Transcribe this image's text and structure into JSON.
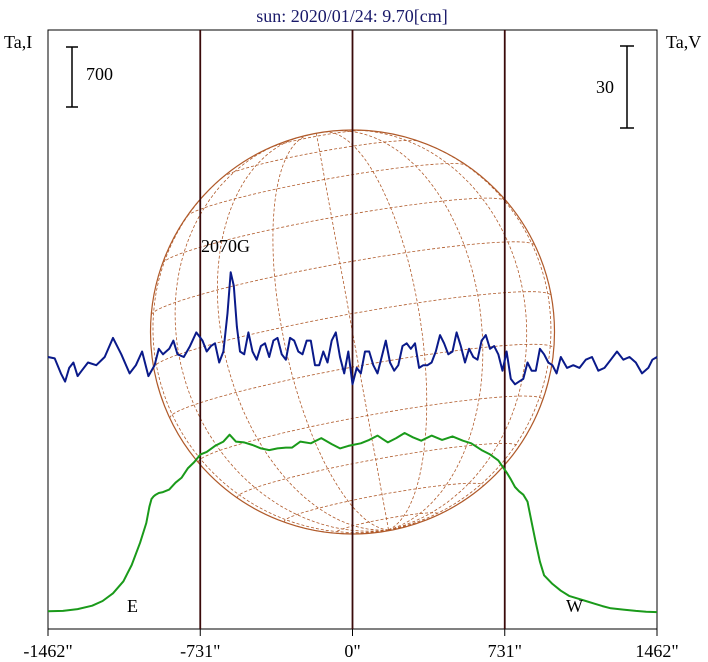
{
  "chart_data": {
    "type": "line",
    "title": "sun: 2020/01/24: 9.70[cm]",
    "left_axis_label": "Ta,I",
    "right_axis_label": "Ta,V",
    "scale_bars": {
      "left_value": "700",
      "right_value": "30"
    },
    "x_tick_labels": [
      "-1462\"",
      "-731\"",
      "0\"",
      "731\"",
      "1462\""
    ],
    "x_ticks": [
      -1462,
      -731,
      0,
      731,
      1462
    ],
    "xlim": [
      -1462,
      1462
    ],
    "limb_labels": {
      "east": "E",
      "west": "W"
    },
    "limb_positions": [
      -731,
      0,
      731
    ],
    "annotation": {
      "text": "2070G",
      "x": -590
    },
    "colors": {
      "intensity": "#1a9a1a",
      "polarization": "#0a1a8a",
      "grid_lines": "#3a0a0a",
      "solar_disk": "#b05a2a",
      "title": "#1a1a6a"
    },
    "series": [
      {
        "id": "intensity",
        "color": "#1a9a1a",
        "x": [
          -1462,
          -1390,
          -1320,
          -1250,
          -1200,
          -1150,
          -1100,
          -1060,
          -1020,
          -990,
          -975,
          -965,
          -955,
          -945,
          -930,
          -910,
          -880,
          -850,
          -820,
          -790,
          -760,
          -730,
          -700,
          -660,
          -620,
          -590,
          -560,
          -520,
          -480,
          -440,
          -400,
          -360,
          -320,
          -290,
          -250,
          -200,
          -150,
          -100,
          -60,
          -20,
          0,
          40,
          80,
          120,
          170,
          210,
          250,
          290,
          330,
          380,
          430,
          480,
          530,
          570,
          620,
          660,
          700,
          740,
          760,
          780,
          800,
          820,
          840,
          860,
          880,
          900,
          920,
          960,
          1000,
          1040,
          1080,
          1120,
          1160,
          1200,
          1240,
          1300,
          1360,
          1410,
          1462
        ],
        "y": [
          20,
          25,
          45,
          85,
          140,
          230,
          370,
          560,
          820,
          1050,
          1240,
          1330,
          1360,
          1380,
          1400,
          1410,
          1440,
          1520,
          1580,
          1690,
          1760,
          1850,
          1880,
          1950,
          2000,
          2080,
          2000,
          1990,
          1960,
          1920,
          1900,
          1920,
          1930,
          1930,
          2000,
          1980,
          2040,
          1970,
          1920,
          1950,
          1960,
          1980,
          2020,
          2070,
          1990,
          2040,
          2100,
          2050,
          2010,
          2070,
          2020,
          2060,
          2010,
          1980,
          1900,
          1850,
          1780,
          1640,
          1560,
          1470,
          1420,
          1380,
          1300,
          1060,
          820,
          600,
          440,
          340,
          260,
          200,
          170,
          140,
          110,
          80,
          55,
          40,
          25,
          15,
          10
        ]
      },
      {
        "id": "polarization",
        "color": "#0a1a8a",
        "x": [
          -1462,
          -1430,
          -1400,
          -1380,
          -1360,
          -1340,
          -1320,
          -1300,
          -1270,
          -1230,
          -1190,
          -1150,
          -1110,
          -1070,
          -1040,
          -1010,
          -980,
          -950,
          -930,
          -910,
          -880,
          -860,
          -840,
          -810,
          -780,
          -750,
          -720,
          -700,
          -680,
          -660,
          -640,
          -620,
          -600,
          -585,
          -570,
          -555,
          -540,
          -520,
          -500,
          -480,
          -460,
          -440,
          -420,
          -400,
          -380,
          -360,
          -340,
          -320,
          -300,
          -280,
          -260,
          -240,
          -220,
          -200,
          -180,
          -160,
          -140,
          -120,
          -100,
          -80,
          -60,
          -40,
          -20,
          0,
          20,
          40,
          60,
          80,
          100,
          120,
          140,
          160,
          180,
          200,
          220,
          240,
          260,
          280,
          300,
          320,
          340,
          360,
          380,
          400,
          420,
          440,
          460,
          480,
          500,
          520,
          540,
          560,
          580,
          600,
          620,
          640,
          660,
          680,
          700,
          720,
          740,
          760,
          780,
          800,
          820,
          840,
          860,
          880,
          900,
          920,
          940,
          960,
          980,
          1000,
          1030,
          1060,
          1090,
          1120,
          1150,
          1180,
          1210,
          1240,
          1270,
          1300,
          1330,
          1360,
          1390,
          1420,
          1440,
          1462
        ],
        "y": [
          0,
          -0.5,
          -6,
          -9,
          -4,
          -2,
          -7,
          -5,
          -2,
          -3,
          0,
          7,
          1,
          -6,
          -3,
          2,
          -7,
          -3,
          3,
          1,
          3,
          6,
          1,
          0,
          4,
          9,
          6,
          2,
          4,
          5,
          -2,
          2,
          16,
          31,
          26,
          11,
          2,
          1,
          9,
          2,
          -1,
          4,
          5,
          0,
          6,
          7,
          1,
          -1,
          7,
          6,
          2,
          1,
          6,
          6,
          -3,
          -3,
          2,
          -2,
          6,
          9,
          0,
          -6,
          2,
          -10,
          -4,
          -6,
          2,
          2,
          -3,
          -6,
          0,
          6,
          -2,
          -5,
          -3,
          4,
          5,
          3,
          5,
          -4,
          -3,
          -3,
          -2,
          2,
          8,
          5,
          1,
          2,
          9,
          4,
          -2,
          3,
          0,
          -1,
          6,
          8,
          3,
          4,
          1,
          -5,
          2,
          -8,
          -10,
          -9,
          -8,
          -2,
          -5,
          -5,
          3,
          1,
          -2,
          -3,
          -6,
          0,
          -4,
          -3,
          -4,
          -1,
          0,
          -5,
          -4,
          -1,
          2,
          -1,
          0,
          -2,
          -6,
          -4,
          -1,
          0
        ]
      }
    ]
  }
}
